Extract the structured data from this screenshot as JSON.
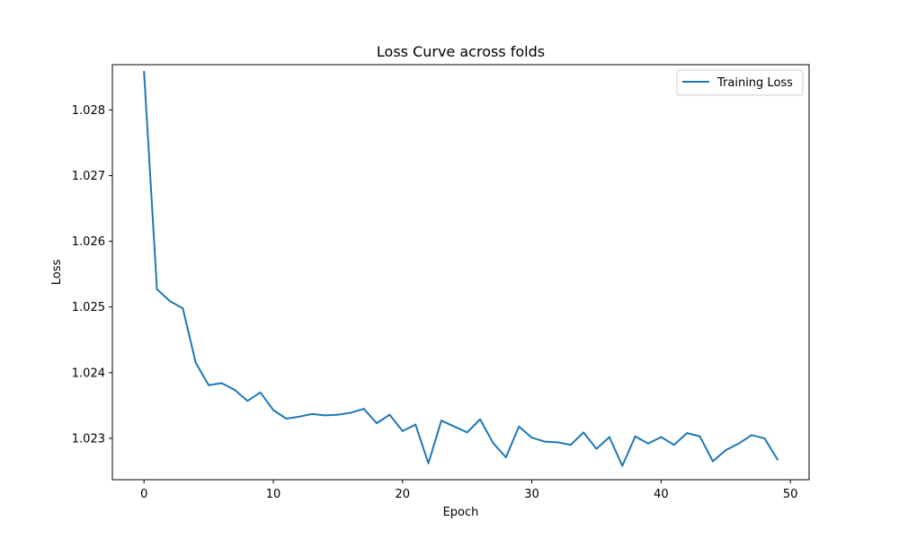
{
  "chart_data": {
    "type": "line",
    "title": "Loss Curve across folds",
    "xlabel": "Epoch",
    "ylabel": "Loss",
    "xlim": [
      -2.45,
      51.45
    ],
    "ylim": [
      1.02237,
      1.02869
    ],
    "xticks": [
      0,
      10,
      20,
      30,
      40,
      50
    ],
    "yticks": [
      1.023,
      1.024,
      1.025,
      1.026,
      1.027,
      1.028
    ],
    "ytick_labels": [
      "1.023",
      "1.024",
      "1.025",
      "1.026",
      "1.027",
      "1.028"
    ],
    "grid": false,
    "legend_position": "top-right",
    "series": [
      {
        "name": "Training Loss",
        "color": "#1f77b4",
        "x": [
          0,
          1,
          2,
          3,
          4,
          5,
          6,
          7,
          8,
          9,
          10,
          11,
          12,
          13,
          14,
          15,
          16,
          17,
          18,
          19,
          20,
          21,
          22,
          23,
          24,
          25,
          26,
          27,
          28,
          29,
          30,
          31,
          32,
          33,
          34,
          35,
          36,
          37,
          38,
          39,
          40,
          41,
          42,
          43,
          44,
          45,
          46,
          47,
          48,
          49
        ],
        "values": [
          1.02858,
          1.02527,
          1.02509,
          1.02498,
          1.02415,
          1.02381,
          1.02384,
          1.02374,
          1.02357,
          1.0237,
          1.02343,
          1.0233,
          1.02333,
          1.02337,
          1.02335,
          1.02336,
          1.02339,
          1.02345,
          1.02323,
          1.02336,
          1.02311,
          1.02321,
          1.02262,
          1.02327,
          1.02318,
          1.02309,
          1.02329,
          1.02293,
          1.02271,
          1.02318,
          1.02301,
          1.02295,
          1.02294,
          1.0229,
          1.02309,
          1.02284,
          1.02302,
          1.02258,
          1.02303,
          1.02292,
          1.02302,
          1.0229,
          1.02308,
          1.02303,
          1.02265,
          1.02282,
          1.02292,
          1.02305,
          1.023,
          1.02268
        ]
      }
    ]
  }
}
